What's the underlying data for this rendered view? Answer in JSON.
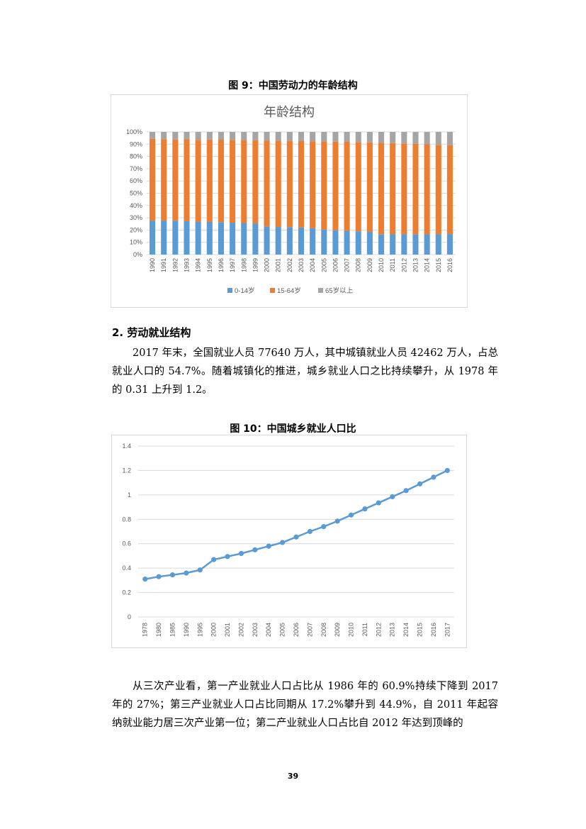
{
  "figure9": {
    "title": "图 9：中国劳动力的年龄结构",
    "chart_data": {
      "type": "bar",
      "stacked": "percent",
      "title": "年龄结构",
      "categories": [
        "1990",
        "1991",
        "1992",
        "1993",
        "1994",
        "1995",
        "1996",
        "1997",
        "1998",
        "1999",
        "2000",
        "2001",
        "2002",
        "2003",
        "2004",
        "2005",
        "2006",
        "2007",
        "2008",
        "2009",
        "2010",
        "2011",
        "2012",
        "2013",
        "2014",
        "2015",
        "2016"
      ],
      "series": [
        {
          "name": "0-14岁",
          "color": "#5b9bd5",
          "values": [
            27.7,
            27.7,
            27.6,
            27.2,
            26.8,
            26.6,
            26.4,
            26.0,
            25.7,
            25.4,
            22.9,
            22.5,
            22.4,
            22.1,
            21.5,
            20.3,
            19.8,
            19.4,
            19.0,
            18.5,
            16.6,
            16.5,
            16.5,
            16.4,
            16.5,
            16.5,
            16.7
          ]
        },
        {
          "name": "15-64岁",
          "color": "#ed7d31",
          "values": [
            66.7,
            66.3,
            66.2,
            66.7,
            66.6,
            67.2,
            67.2,
            67.5,
            67.6,
            67.7,
            70.1,
            70.4,
            70.3,
            70.4,
            70.9,
            72.0,
            72.3,
            72.5,
            72.7,
            73.0,
            74.5,
            74.4,
            74.1,
            73.9,
            73.4,
            73.0,
            72.5
          ]
        },
        {
          "name": "65岁以上",
          "color": "#a5a5a5",
          "values": [
            5.6,
            6.0,
            6.2,
            6.1,
            6.6,
            6.2,
            6.4,
            6.5,
            6.7,
            6.9,
            7.0,
            7.1,
            7.3,
            7.5,
            7.6,
            7.7,
            7.9,
            8.1,
            8.3,
            8.5,
            8.9,
            9.1,
            9.4,
            9.7,
            10.1,
            10.5,
            10.8
          ]
        }
      ],
      "yticks": [
        "0%",
        "10%",
        "20%",
        "30%",
        "40%",
        "50%",
        "60%",
        "70%",
        "80%",
        "90%",
        "100%"
      ],
      "ylim": [
        0,
        100
      ],
      "legend": "bottom"
    }
  },
  "section": {
    "heading": "2.  劳动就业结构"
  },
  "para1": "2017 年末，全国就业人员 77640 万人，其中城镇就业人员 42462 万人，占总就业人口的 54.7%。随着城镇化的推进，城乡就业人口之比持续攀升，从 1978 年的 0.31 上升到 1.2。",
  "figure10": {
    "title": "图 10：中国城乡就业人口比",
    "chart_data": {
      "type": "line",
      "categories": [
        "1978",
        "1980",
        "1985",
        "1990",
        "1995",
        "2000",
        "2001",
        "2002",
        "2003",
        "2004",
        "2005",
        "2006",
        "2007",
        "2008",
        "2009",
        "2010",
        "2011",
        "2012",
        "2013",
        "2014",
        "2015",
        "2016",
        "2017"
      ],
      "series": [
        {
          "name": "城乡就业人口比",
          "color": "#5b9bd5",
          "values": [
            0.31,
            0.33,
            0.345,
            0.36,
            0.385,
            0.47,
            0.495,
            0.52,
            0.55,
            0.58,
            0.61,
            0.655,
            0.7,
            0.74,
            0.785,
            0.835,
            0.885,
            0.935,
            0.985,
            1.035,
            1.09,
            1.145,
            1.2
          ]
        }
      ],
      "yticks": [
        "0",
        "0.2",
        "0.4",
        "0.6",
        "0.8",
        "1",
        "1.2",
        "1.4"
      ],
      "ylim": [
        0,
        1.4
      ]
    }
  },
  "para2": "从三次产业看，第一产业就业人口占比从 1986 年的 60.9%持续下降到 2017 年的 27%；第三产业就业人口占比同期从 17.2%攀升到 44.9%，自 2011 年起容纳就业能力居三次产业第一位；第二产业就业人口占比自 2012 年达到顶峰的",
  "page_number": "39"
}
